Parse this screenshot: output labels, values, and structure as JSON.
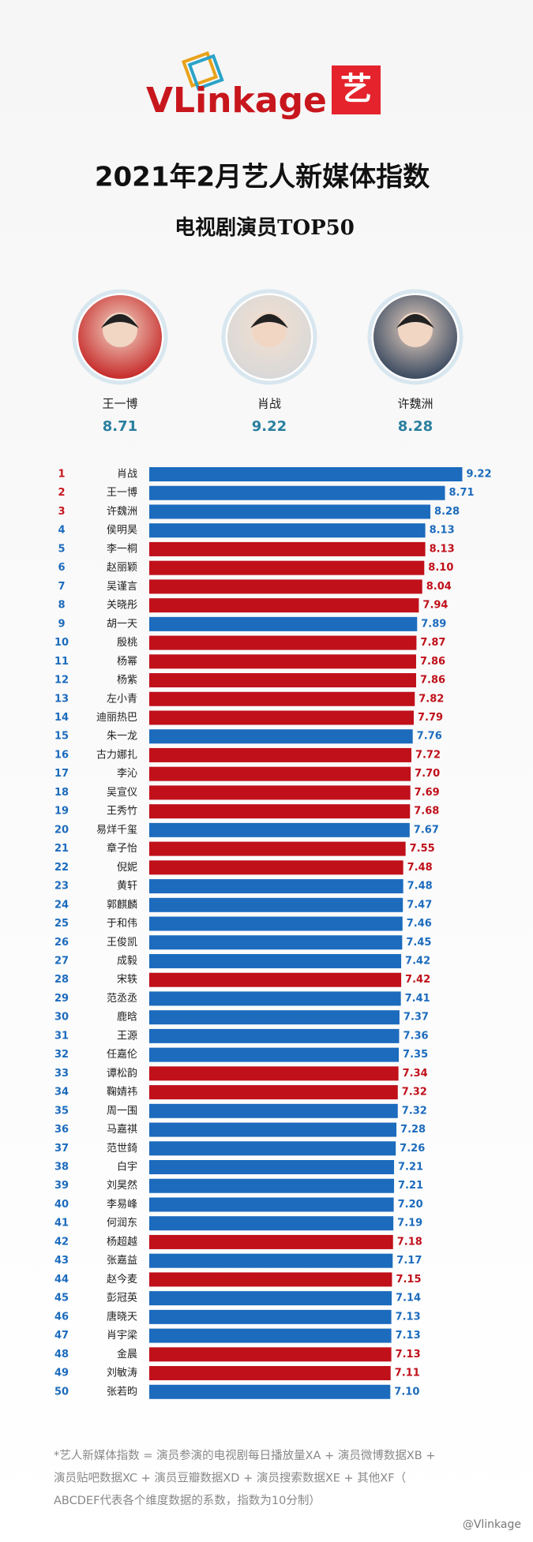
{
  "header": {
    "logo_text": "VLinkage",
    "logo_badge": "艺",
    "title": "2021年2月艺人新媒体指数",
    "subtitle": "电视剧演员TOP50"
  },
  "podium": [
    {
      "name": "王一博",
      "value": 8.71
    },
    {
      "name": "肖战",
      "value": 9.22
    },
    {
      "name": "许魏洲",
      "value": 8.28
    }
  ],
  "chart_data": {
    "type": "bar",
    "orientation": "horizontal",
    "ranks": [
      1,
      2,
      3,
      4,
      5,
      6,
      7,
      8,
      9,
      10,
      11,
      12,
      13,
      14,
      15,
      16,
      17,
      18,
      19,
      20,
      21,
      22,
      23,
      24,
      25,
      26,
      27,
      28,
      29,
      30,
      31,
      32,
      33,
      34,
      35,
      36,
      37,
      38,
      39,
      40,
      41,
      42,
      43,
      44,
      45,
      46,
      47,
      48,
      49,
      50
    ],
    "rank_colors": [
      "#c8161d",
      "#c8161d",
      "#c8161d",
      "#1c6bbd",
      "#1c6bbd",
      "#1c6bbd",
      "#1c6bbd",
      "#1c6bbd",
      "#1c6bbd",
      "#1c6bbd",
      "#1c6bbd",
      "#1c6bbd",
      "#1c6bbd",
      "#1c6bbd",
      "#1c6bbd",
      "#1c6bbd",
      "#1c6bbd",
      "#1c6bbd",
      "#1c6bbd",
      "#1c6bbd",
      "#1c6bbd",
      "#1c6bbd",
      "#1c6bbd",
      "#1c6bbd",
      "#1c6bbd",
      "#1c6bbd",
      "#1c6bbd",
      "#1c6bbd",
      "#1c6bbd",
      "#1c6bbd",
      "#1c6bbd",
      "#1c6bbd",
      "#1c6bbd",
      "#1c6bbd",
      "#1c6bbd",
      "#1c6bbd",
      "#1c6bbd",
      "#1c6bbd",
      "#1c6bbd",
      "#1c6bbd",
      "#1c6bbd",
      "#1c6bbd",
      "#1c6bbd",
      "#1c6bbd",
      "#1c6bbd",
      "#1c6bbd",
      "#1c6bbd",
      "#1c6bbd",
      "#1c6bbd",
      "#1c6bbd"
    ],
    "categories": [
      "肖战",
      "王一博",
      "许魏洲",
      "侯明昊",
      "李一桐",
      "赵丽颖",
      "吴谨言",
      "关晓彤",
      "胡一天",
      "殷桃",
      "杨幂",
      "杨紫",
      "左小青",
      "迪丽热巴",
      "朱一龙",
      "古力娜扎",
      "李沁",
      "吴宣仪",
      "王秀竹",
      "易烊千玺",
      "章子怡",
      "倪妮",
      "黄轩",
      "郭麒麟",
      "于和伟",
      "王俊凯",
      "成毅",
      "宋轶",
      "范丞丞",
      "鹿晗",
      "王源",
      "任嘉伦",
      "谭松韵",
      "鞠婧祎",
      "周一围",
      "马嘉祺",
      "范世錡",
      "白宇",
      "刘昊然",
      "李易峰",
      "何润东",
      "杨超越",
      "张嘉益",
      "赵今麦",
      "彭冠英",
      "唐晓天",
      "肖宇梁",
      "金晨",
      "刘敏涛",
      "张若昀"
    ],
    "values": [
      9.22,
      8.71,
      8.28,
      8.13,
      8.13,
      8.1,
      8.04,
      7.94,
      7.89,
      7.87,
      7.86,
      7.86,
      7.82,
      7.79,
      7.76,
      7.72,
      7.7,
      7.69,
      7.68,
      7.67,
      7.55,
      7.48,
      7.48,
      7.47,
      7.46,
      7.45,
      7.42,
      7.42,
      7.41,
      7.37,
      7.36,
      7.35,
      7.34,
      7.32,
      7.32,
      7.28,
      7.26,
      7.21,
      7.21,
      7.2,
      7.19,
      7.18,
      7.17,
      7.15,
      7.14,
      7.13,
      7.13,
      7.13,
      7.11,
      7.1
    ],
    "value_labels": [
      "9.22",
      "8.71",
      "8.28",
      "8.13",
      "8.13",
      "8.10",
      "8.04",
      "7.94",
      "7.89",
      "7.87",
      "7.86",
      "7.86",
      "7.82",
      "7.79",
      "7.76",
      "7.72",
      "7.70",
      "7.69",
      "7.68",
      "7.67",
      "7.55",
      "7.48",
      "7.48",
      "7.47",
      "7.46",
      "7.45",
      "7.42",
      "7.42",
      "7.41",
      "7.37",
      "7.36",
      "7.35",
      "7.34",
      "7.32",
      "7.32",
      "7.28",
      "7.26",
      "7.21",
      "7.21",
      "7.20",
      "7.19",
      "7.18",
      "7.17",
      "7.15",
      "7.14",
      "7.13",
      "7.13",
      "7.13",
      "7.11",
      "7.10"
    ],
    "colors": [
      "#1c6bbd",
      "#1c6bbd",
      "#1c6bbd",
      "#1c6bbd",
      "#c0101a",
      "#c0101a",
      "#c0101a",
      "#c0101a",
      "#1c6bbd",
      "#c0101a",
      "#c0101a",
      "#c0101a",
      "#c0101a",
      "#c0101a",
      "#1c6bbd",
      "#c0101a",
      "#c0101a",
      "#c0101a",
      "#c0101a",
      "#1c6bbd",
      "#c0101a",
      "#c0101a",
      "#1c6bbd",
      "#1c6bbd",
      "#1c6bbd",
      "#1c6bbd",
      "#1c6bbd",
      "#c0101a",
      "#1c6bbd",
      "#1c6bbd",
      "#1c6bbd",
      "#1c6bbd",
      "#c0101a",
      "#c0101a",
      "#1c6bbd",
      "#1c6bbd",
      "#1c6bbd",
      "#1c6bbd",
      "#1c6bbd",
      "#1c6bbd",
      "#1c6bbd",
      "#c0101a",
      "#1c6bbd",
      "#c0101a",
      "#1c6bbd",
      "#1c6bbd",
      "#1c6bbd",
      "#c0101a",
      "#c0101a",
      "#1c6bbd"
    ],
    "xlim": [
      0,
      10
    ]
  },
  "footnote": [
    "*艺人新媒体指数 = 演员参演的电视剧每日播放量XA + 演员微博数据XB +",
    "演员贴吧数据XC + 演员豆瓣数据XD + 演员搜索数据XE + 其他XF（",
    "ABCDEF代表各个维度数据的系数，指数为10分制）"
  ],
  "watermark": "@Vlinkage"
}
